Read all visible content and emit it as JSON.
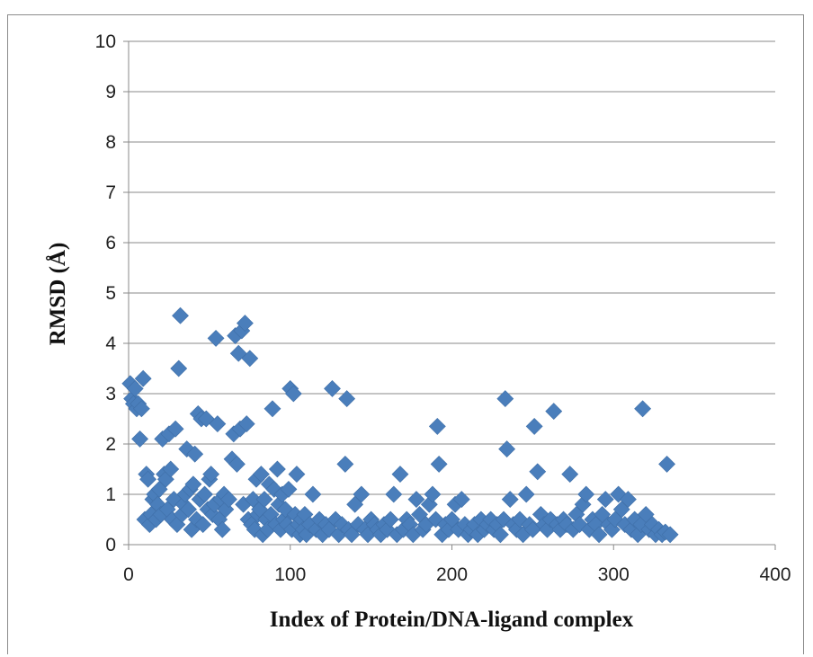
{
  "chart_data": {
    "type": "scatter",
    "title": "",
    "xlabel": "Index of Protein/DNA-ligand complex",
    "ylabel": "RMSD (Å)",
    "xlim": [
      0,
      400
    ],
    "ylim": [
      0,
      10
    ],
    "xticks": [
      0,
      100,
      200,
      300,
      400
    ],
    "yticks": [
      0,
      1,
      2,
      3,
      4,
      5,
      6,
      7,
      8,
      9,
      10
    ],
    "grid": "horizontal",
    "legend": "none",
    "marker": "diamond",
    "color": "#4a7ebb",
    "points": [
      [
        1,
        3.2
      ],
      [
        2,
        2.9
      ],
      [
        3,
        2.8
      ],
      [
        4,
        3.1
      ],
      [
        5,
        2.7
      ],
      [
        6,
        2.8
      ],
      [
        7,
        2.1
      ],
      [
        8,
        2.7
      ],
      [
        9,
        3.3
      ],
      [
        10,
        0.5
      ],
      [
        11,
        1.4
      ],
      [
        12,
        1.3
      ],
      [
        13,
        0.4
      ],
      [
        14,
        0.6
      ],
      [
        15,
        0.9
      ],
      [
        16,
        1.0
      ],
      [
        17,
        0.5
      ],
      [
        18,
        0.8
      ],
      [
        19,
        1.1
      ],
      [
        20,
        0.6
      ],
      [
        21,
        2.1
      ],
      [
        22,
        1.4
      ],
      [
        23,
        1.3
      ],
      [
        24,
        0.7
      ],
      [
        25,
        2.2
      ],
      [
        26,
        1.5
      ],
      [
        27,
        0.5
      ],
      [
        28,
        0.9
      ],
      [
        29,
        2.3
      ],
      [
        30,
        0.4
      ],
      [
        31,
        3.5
      ],
      [
        32,
        4.55
      ],
      [
        33,
        0.6
      ],
      [
        34,
        0.8
      ],
      [
        35,
        1.0
      ],
      [
        36,
        1.9
      ],
      [
        37,
        0.7
      ],
      [
        38,
        1.1
      ],
      [
        39,
        0.3
      ],
      [
        40,
        1.2
      ],
      [
        41,
        1.8
      ],
      [
        42,
        0.5
      ],
      [
        43,
        2.6
      ],
      [
        44,
        0.9
      ],
      [
        45,
        2.5
      ],
      [
        46,
        0.4
      ],
      [
        47,
        1.0
      ],
      [
        48,
        2.5
      ],
      [
        49,
        0.7
      ],
      [
        50,
        1.3
      ],
      [
        51,
        1.4
      ],
      [
        52,
        0.6
      ],
      [
        53,
        0.8
      ],
      [
        54,
        4.1
      ],
      [
        55,
        2.4
      ],
      [
        56,
        0.5
      ],
      [
        57,
        0.9
      ],
      [
        58,
        0.3
      ],
      [
        59,
        1.0
      ],
      [
        60,
        0.7
      ],
      [
        62,
        0.9
      ],
      [
        64,
        1.7
      ],
      [
        65,
        2.2
      ],
      [
        66,
        4.15
      ],
      [
        67,
        1.6
      ],
      [
        68,
        3.8
      ],
      [
        69,
        2.3
      ],
      [
        70,
        4.25
      ],
      [
        71,
        0.8
      ],
      [
        72,
        4.4
      ],
      [
        73,
        2.4
      ],
      [
        74,
        0.5
      ],
      [
        75,
        3.7
      ],
      [
        76,
        0.4
      ],
      [
        77,
        0.9
      ],
      [
        78,
        0.3
      ],
      [
        79,
        1.3
      ],
      [
        80,
        0.6
      ],
      [
        81,
        0.7
      ],
      [
        82,
        1.4
      ],
      [
        83,
        0.2
      ],
      [
        84,
        0.9
      ],
      [
        85,
        0.5
      ],
      [
        86,
        0.3
      ],
      [
        87,
        1.2
      ],
      [
        88,
        0.6
      ],
      [
        89,
        2.7
      ],
      [
        90,
        1.1
      ],
      [
        91,
        0.4
      ],
      [
        92,
        1.5
      ],
      [
        93,
        0.8
      ],
      [
        94,
        0.3
      ],
      [
        95,
        1.0
      ],
      [
        96,
        0.5
      ],
      [
        97,
        0.7
      ],
      [
        98,
        0.4
      ],
      [
        99,
        1.1
      ],
      [
        100,
        3.1
      ],
      [
        101,
        0.3
      ],
      [
        102,
        3.0
      ],
      [
        103,
        0.6
      ],
      [
        104,
        1.4
      ],
      [
        105,
        0.4
      ],
      [
        106,
        0.2
      ],
      [
        107,
        0.5
      ],
      [
        108,
        0.3
      ],
      [
        109,
        0.6
      ],
      [
        110,
        0.2
      ],
      [
        112,
        0.4
      ],
      [
        114,
        1.0
      ],
      [
        116,
        0.3
      ],
      [
        118,
        0.5
      ],
      [
        120,
        0.2
      ],
      [
        122,
        0.4
      ],
      [
        124,
        0.3
      ],
      [
        126,
        3.1
      ],
      [
        128,
        0.5
      ],
      [
        130,
        0.2
      ],
      [
        132,
        0.4
      ],
      [
        134,
        1.6
      ],
      [
        135,
        2.9
      ],
      [
        136,
        0.3
      ],
      [
        138,
        0.2
      ],
      [
        140,
        0.8
      ],
      [
        142,
        0.4
      ],
      [
        144,
        1.0
      ],
      [
        146,
        0.3
      ],
      [
        148,
        0.2
      ],
      [
        150,
        0.5
      ],
      [
        152,
        0.4
      ],
      [
        154,
        0.3
      ],
      [
        156,
        0.2
      ],
      [
        158,
        0.4
      ],
      [
        160,
        0.3
      ],
      [
        162,
        0.5
      ],
      [
        164,
        1.0
      ],
      [
        166,
        0.2
      ],
      [
        168,
        1.4
      ],
      [
        170,
        0.3
      ],
      [
        172,
        0.5
      ],
      [
        174,
        0.4
      ],
      [
        176,
        0.2
      ],
      [
        178,
        0.9
      ],
      [
        180,
        0.6
      ],
      [
        182,
        0.3
      ],
      [
        184,
        0.4
      ],
      [
        186,
        0.8
      ],
      [
        188,
        1.0
      ],
      [
        190,
        0.5
      ],
      [
        191,
        2.35
      ],
      [
        192,
        1.6
      ],
      [
        194,
        0.2
      ],
      [
        196,
        0.4
      ],
      [
        198,
        0.3
      ],
      [
        200,
        0.5
      ],
      [
        202,
        0.8
      ],
      [
        204,
        0.3
      ],
      [
        206,
        0.9
      ],
      [
        208,
        0.4
      ],
      [
        210,
        0.2
      ],
      [
        212,
        0.3
      ],
      [
        214,
        0.4
      ],
      [
        216,
        0.2
      ],
      [
        218,
        0.5
      ],
      [
        220,
        0.3
      ],
      [
        222,
        0.4
      ],
      [
        224,
        0.5
      ],
      [
        226,
        0.3
      ],
      [
        228,
        0.4
      ],
      [
        230,
        0.2
      ],
      [
        232,
        0.5
      ],
      [
        233,
        2.9
      ],
      [
        234,
        1.9
      ],
      [
        236,
        0.9
      ],
      [
        238,
        0.4
      ],
      [
        240,
        0.3
      ],
      [
        242,
        0.5
      ],
      [
        244,
        0.2
      ],
      [
        246,
        1.0
      ],
      [
        248,
        0.4
      ],
      [
        250,
        0.3
      ],
      [
        251,
        2.35
      ],
      [
        253,
        1.45
      ],
      [
        255,
        0.6
      ],
      [
        257,
        0.4
      ],
      [
        259,
        0.3
      ],
      [
        261,
        0.5
      ],
      [
        263,
        2.65
      ],
      [
        265,
        0.4
      ],
      [
        267,
        0.3
      ],
      [
        269,
        0.5
      ],
      [
        271,
        0.4
      ],
      [
        273,
        1.4
      ],
      [
        275,
        0.3
      ],
      [
        277,
        0.6
      ],
      [
        279,
        0.4
      ],
      [
        281,
        0.8
      ],
      [
        283,
        1.0
      ],
      [
        285,
        0.3
      ],
      [
        287,
        0.5
      ],
      [
        289,
        0.4
      ],
      [
        291,
        0.2
      ],
      [
        293,
        0.6
      ],
      [
        295,
        0.9
      ],
      [
        297,
        0.4
      ],
      [
        299,
        0.3
      ],
      [
        301,
        0.5
      ],
      [
        303,
        1.0
      ],
      [
        305,
        0.7
      ],
      [
        307,
        0.4
      ],
      [
        309,
        0.9
      ],
      [
        311,
        0.3
      ],
      [
        313,
        0.5
      ],
      [
        315,
        0.2
      ],
      [
        317,
        0.4
      ],
      [
        318,
        2.7
      ],
      [
        320,
        0.6
      ],
      [
        322,
        0.3
      ],
      [
        324,
        0.4
      ],
      [
        326,
        0.2
      ],
      [
        328,
        0.3
      ],
      [
        330,
        0.2
      ],
      [
        332,
        0.25
      ],
      [
        333,
        1.6
      ],
      [
        335,
        0.2
      ]
    ]
  }
}
